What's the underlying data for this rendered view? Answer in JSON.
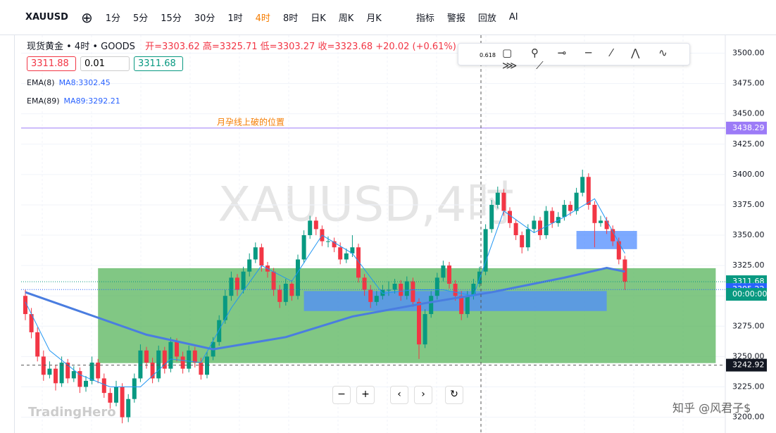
{
  "toolbar": {
    "symbol": "XAUUSD",
    "intervals": [
      "1分",
      "5分",
      "15分",
      "30分",
      "1时",
      "4时",
      "8时",
      "日K",
      "周K",
      "月K"
    ],
    "tools": [
      "指标",
      "警报",
      "回放",
      "AI"
    ]
  },
  "legend": {
    "instrument": "现货黄金 • 4时 • GOODS",
    "ohlc_text": [
      "开=3303.62",
      "高=3325.71",
      "低=3303.27",
      "收=3323.68",
      "+20.02 (+0.61%)"
    ]
  },
  "order": {
    "sell": "3311.88",
    "qty": "0.01",
    "buy": "3311.68"
  },
  "indicators": [
    {
      "name": "EMA(8)",
      "value_text": "MA8:3302.45"
    },
    {
      "name": "EMA(89)",
      "value_text": "MA89:3292.21"
    }
  ],
  "drawing_toolbar_label": "0.618",
  "branding": "TradingHero",
  "credit": "知乎 @风君子$",
  "chart_data": {
    "type": "candlestick",
    "watermark": "XAUUSD,4时",
    "annotation": "月孕线上破的位置",
    "ylim": [
      3187,
      3520
    ],
    "yticks": [
      {
        "value": 3200,
        "label": "3200.00"
      },
      {
        "value": 3225,
        "label": "3225.00"
      },
      {
        "value": 3250,
        "label": "3250.00"
      },
      {
        "value": 3275,
        "label": "3275.00"
      },
      {
        "value": 3300,
        "label": "3300.00"
      },
      {
        "value": 3325,
        "label": "3325.00"
      },
      {
        "value": 3350,
        "label": "3350.00"
      },
      {
        "value": 3375,
        "label": "3375.00"
      },
      {
        "value": 3400,
        "label": "3400.00"
      },
      {
        "value": 3425,
        "label": "3425.00"
      },
      {
        "value": 3450,
        "label": "3450.00"
      },
      {
        "value": 3475,
        "label": "3475.00"
      },
      {
        "value": 3500,
        "label": "3500.00"
      }
    ],
    "up_color": "#089981",
    "down_color": "#f23645",
    "ohlc": [
      [
        3300,
        3305,
        3280,
        3285
      ],
      [
        3285,
        3290,
        3265,
        3270
      ],
      [
        3270,
        3274,
        3246,
        3250
      ],
      [
        3250,
        3255,
        3230,
        3235
      ],
      [
        3235,
        3246,
        3232,
        3240
      ],
      [
        3240,
        3243,
        3222,
        3228
      ],
      [
        3228,
        3250,
        3225,
        3245
      ],
      [
        3245,
        3248,
        3228,
        3232
      ],
      [
        3232,
        3242,
        3229,
        3238
      ],
      [
        3238,
        3241,
        3220,
        3225
      ],
      [
        3225,
        3234,
        3221,
        3230
      ],
      [
        3230,
        3250,
        3227,
        3245
      ],
      [
        3245,
        3248,
        3228,
        3232
      ],
      [
        3232,
        3236,
        3216,
        3220
      ],
      [
        3220,
        3224,
        3207,
        3212
      ],
      [
        3212,
        3230,
        3209,
        3225
      ],
      [
        3225,
        3228,
        3195,
        3200
      ],
      [
        3200,
        3219,
        3196,
        3215
      ],
      [
        3215,
        3236,
        3212,
        3232
      ],
      [
        3232,
        3260,
        3229,
        3255
      ],
      [
        3255,
        3258,
        3240,
        3245
      ],
      [
        3245,
        3249,
        3228,
        3232
      ],
      [
        3232,
        3259,
        3229,
        3255
      ],
      [
        3255,
        3258,
        3236,
        3240
      ],
      [
        3240,
        3266,
        3237,
        3262
      ],
      [
        3262,
        3265,
        3246,
        3250
      ],
      [
        3250,
        3254,
        3236,
        3240
      ],
      [
        3240,
        3259,
        3237,
        3255
      ],
      [
        3255,
        3258,
        3241,
        3245
      ],
      [
        3245,
        3249,
        3231,
        3235
      ],
      [
        3235,
        3254,
        3232,
        3250
      ],
      [
        3250,
        3266,
        3247,
        3262
      ],
      [
        3262,
        3284,
        3259,
        3280
      ],
      [
        3280,
        3305,
        3277,
        3300
      ],
      [
        3300,
        3320,
        3296,
        3315
      ],
      [
        3315,
        3318,
        3300,
        3305
      ],
      [
        3305,
        3324,
        3302,
        3320
      ],
      [
        3320,
        3335,
        3316,
        3330
      ],
      [
        3330,
        3344,
        3327,
        3340
      ],
      [
        3340,
        3343,
        3320,
        3325
      ],
      [
        3325,
        3328,
        3315,
        3320
      ],
      [
        3320,
        3323,
        3300,
        3305
      ],
      [
        3305,
        3309,
        3290,
        3295
      ],
      [
        3295,
        3314,
        3292,
        3310
      ],
      [
        3310,
        3313,
        3296,
        3300
      ],
      [
        3300,
        3334,
        3297,
        3330
      ],
      [
        3330,
        3354,
        3327,
        3350
      ],
      [
        3350,
        3366,
        3347,
        3362
      ],
      [
        3362,
        3365,
        3350,
        3355
      ],
      [
        3355,
        3358,
        3341,
        3345
      ],
      [
        3345,
        3349,
        3340,
        3345
      ],
      [
        3345,
        3348,
        3336,
        3340
      ],
      [
        3340,
        3344,
        3326,
        3330
      ],
      [
        3330,
        3339,
        3327,
        3335
      ],
      [
        3335,
        3350,
        3332,
        3340
      ],
      [
        3340,
        3343,
        3311,
        3315
      ],
      [
        3315,
        3318,
        3300,
        3305
      ],
      [
        3305,
        3309,
        3290,
        3295
      ],
      [
        3295,
        3304,
        3292,
        3300
      ],
      [
        3300,
        3309,
        3297,
        3305
      ],
      [
        3305,
        3312,
        3300,
        3305
      ],
      [
        3305,
        3314,
        3302,
        3310
      ],
      [
        3310,
        3313,
        3296,
        3300
      ],
      [
        3300,
        3316,
        3297,
        3312
      ],
      [
        3312,
        3315,
        3291,
        3295
      ],
      [
        3295,
        3298,
        3248,
        3260
      ],
      [
        3260,
        3289,
        3257,
        3285
      ],
      [
        3285,
        3304,
        3282,
        3300
      ],
      [
        3300,
        3319,
        3297,
        3315
      ],
      [
        3315,
        3329,
        3312,
        3325
      ],
      [
        3325,
        3328,
        3306,
        3310
      ],
      [
        3310,
        3313,
        3296,
        3300
      ],
      [
        3300,
        3304,
        3280,
        3285
      ],
      [
        3285,
        3304,
        3282,
        3300
      ],
      [
        3300,
        3314,
        3297,
        3310
      ],
      [
        3310,
        3324,
        3307,
        3320
      ],
      [
        3320,
        3359,
        3317,
        3355
      ],
      [
        3355,
        3379,
        3352,
        3375
      ],
      [
        3375,
        3390,
        3372,
        3385
      ],
      [
        3385,
        3388,
        3366,
        3370
      ],
      [
        3370,
        3373,
        3356,
        3360
      ],
      [
        3360,
        3363,
        3346,
        3350
      ],
      [
        3350,
        3353,
        3335,
        3340
      ],
      [
        3340,
        3359,
        3337,
        3355
      ],
      [
        3355,
        3366,
        3352,
        3362
      ],
      [
        3362,
        3365,
        3346,
        3350
      ],
      [
        3350,
        3374,
        3347,
        3370
      ],
      [
        3370,
        3373,
        3356,
        3360
      ],
      [
        3360,
        3369,
        3357,
        3365
      ],
      [
        3365,
        3379,
        3362,
        3375
      ],
      [
        3375,
        3378,
        3366,
        3370
      ],
      [
        3370,
        3389,
        3367,
        3385
      ],
      [
        3385,
        3404,
        3382,
        3398
      ],
      [
        3398,
        3401,
        3371,
        3375
      ],
      [
        3375,
        3378,
        3340,
        3360
      ],
      [
        3360,
        3366,
        3357,
        3362
      ],
      [
        3362,
        3365,
        3351,
        3355
      ],
      [
        3355,
        3358,
        3341,
        3345
      ],
      [
        3345,
        3348,
        3326,
        3330
      ],
      [
        3330,
        3333,
        3305,
        3311.68
      ]
    ],
    "series": [
      {
        "name": "EMA(89)",
        "color": "#4a7de0",
        "width": 3,
        "x": [
          0,
          8,
          20,
          31,
          43,
          54,
          66,
          77,
          89,
          96,
          99
        ],
        "values": [
          3303,
          3289,
          3268,
          3256,
          3266,
          3283,
          3294,
          3303,
          3315,
          3323,
          3320
        ]
      },
      {
        "name": "EMA(8)",
        "color": "#2196f3",
        "width": 1,
        "x": [
          0,
          4,
          9,
          14,
          19,
          24,
          29,
          34,
          39,
          44,
          49,
          54,
          59,
          64,
          69,
          74,
          79,
          84,
          89,
          94,
          99
        ],
        "values": [
          3295,
          3255,
          3235,
          3225,
          3225,
          3248,
          3245,
          3290,
          3325,
          3312,
          3350,
          3335,
          3302,
          3305,
          3305,
          3300,
          3370,
          3352,
          3365,
          3380,
          3335
        ]
      }
    ],
    "zones": [
      {
        "from": 12,
        "to": 114,
        "top": 3322.8,
        "bottom": 3244.6,
        "color": "rgba(76,175,80,0.7)"
      },
      {
        "from": 46,
        "to": 96,
        "top": 3304,
        "bottom": 3287.5,
        "color": "rgba(80,140,255,0.75)"
      },
      {
        "from": 91,
        "to": 101,
        "top": 3353.5,
        "bottom": 3338.5,
        "color": "rgba(80,140,255,0.75)"
      }
    ],
    "hlines": [
      {
        "value": 3438.29,
        "color": "#9c7bf7"
      },
      {
        "value": 3311.68,
        "color": "#089981"
      },
      {
        "value": 3305.22,
        "color": "#2962ff"
      }
    ],
    "cursor_price": 3242.92,
    "countdown": "00:00:00"
  }
}
